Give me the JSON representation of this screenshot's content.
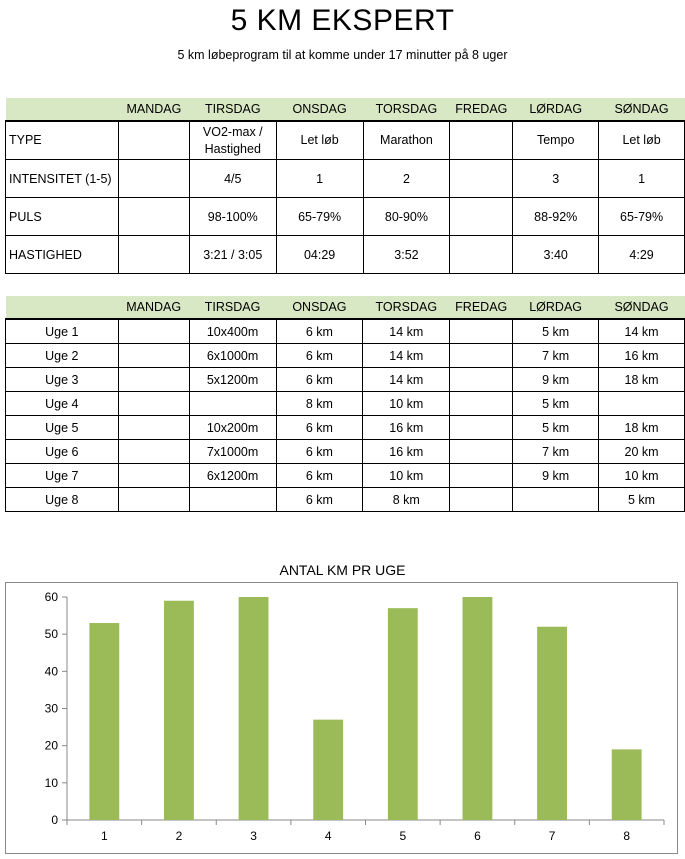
{
  "title": "5 KM EKSPERT",
  "subtitle": "5 km løbeprogram til at komme under 17 minutter på 8 uger",
  "days": [
    "MANDAG",
    "TIRSDAG",
    "ONSDAG",
    "TORSDAG",
    "FREDAG",
    "LØRDAG",
    "SØNDAG"
  ],
  "intensity_table": {
    "rows": [
      {
        "label": "TYPE",
        "cells": [
          "",
          "VO2-max / Hastighed",
          "Let løb",
          "Marathon",
          "",
          "Tempo",
          "Let løb"
        ]
      },
      {
        "label": "INTENSITET (1-5)",
        "cells": [
          "",
          "4/5",
          "1",
          "2",
          "",
          "3",
          "1"
        ]
      },
      {
        "label": "PULS",
        "cells": [
          "",
          "98-100%",
          "65-79%",
          "80-90%",
          "",
          "88-92%",
          "65-79%"
        ]
      },
      {
        "label": "HASTIGHED",
        "cells": [
          "",
          "3:21 / 3:05",
          "04:29",
          "3:52",
          "",
          "3:40",
          "4:29"
        ]
      }
    ]
  },
  "weekly_table": {
    "rows": [
      {
        "label": "Uge 1",
        "cells": [
          "",
          "10x400m",
          "6 km",
          "14 km",
          "",
          "5 km",
          "14 km"
        ]
      },
      {
        "label": "Uge 2",
        "cells": [
          "",
          "6x1000m",
          "6 km",
          "14 km",
          "",
          "7 km",
          "16 km"
        ]
      },
      {
        "label": "Uge 3",
        "cells": [
          "",
          "5x1200m",
          "6 km",
          "14 km",
          "",
          "9 km",
          "18 km"
        ]
      },
      {
        "label": "Uge 4",
        "cells": [
          "",
          "",
          "8 km",
          "10 km",
          "",
          "5 km",
          ""
        ]
      },
      {
        "label": "Uge 5",
        "cells": [
          "",
          "10x200m",
          "6 km",
          "16 km",
          "",
          "5 km",
          "18 km"
        ]
      },
      {
        "label": "Uge 6",
        "cells": [
          "",
          "7x1000m",
          "6 km",
          "16 km",
          "",
          "7 km",
          "20 km"
        ]
      },
      {
        "label": "Uge 7",
        "cells": [
          "",
          "6x1200m",
          "6 km",
          "10 km",
          "",
          "9 km",
          "10 km"
        ]
      },
      {
        "label": "Uge 8",
        "cells": [
          "",
          "",
          "6 km",
          "8 km",
          "",
          "",
          "5 km"
        ]
      }
    ]
  },
  "chart_data": {
    "type": "bar",
    "title": "ANTAL KM PR UGE",
    "categories": [
      "1",
      "2",
      "3",
      "4",
      "5",
      "6",
      "7",
      "8"
    ],
    "values": [
      53,
      59,
      60,
      27,
      57,
      60,
      52,
      19
    ],
    "ylim": [
      0,
      60
    ],
    "yticks": [
      0,
      10,
      20,
      30,
      40,
      50,
      60
    ],
    "grid": false,
    "legend": "none",
    "bar_color": "#9bbb59"
  }
}
